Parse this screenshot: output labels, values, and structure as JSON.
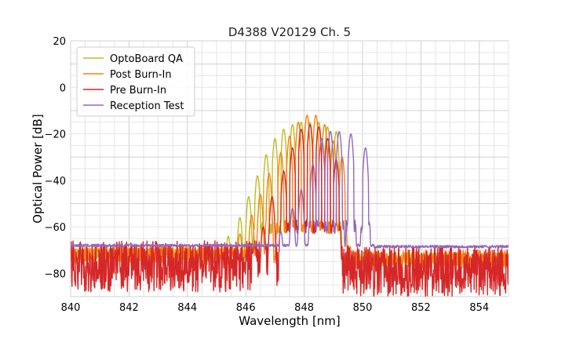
{
  "chart_data": {
    "type": "line",
    "title": "D4388 V20129 Ch. 5",
    "xlabel": "Wavelength [nm]",
    "ylabel": "Optical Power [dB]",
    "xlim": [
      840,
      855
    ],
    "ylim": [
      -90,
      20
    ],
    "xticks": [
      840,
      842,
      844,
      846,
      848,
      850,
      852,
      854
    ],
    "xtick_labels": [
      "840",
      "842",
      "844",
      "846",
      "848",
      "850",
      "852",
      "854"
    ],
    "yticks": [
      20,
      0,
      -20,
      -40,
      -60,
      -80
    ],
    "ytick_labels": [
      "20",
      "0",
      "−20",
      "−40",
      "−60",
      "−80"
    ],
    "grid": true,
    "legend_position": "top-left",
    "series": [
      {
        "name": "OptoBoard QA",
        "color": "#bcbd22",
        "noise_floor": -72,
        "noise_amp": 3,
        "noise_range": [
          840,
          845.5
        ],
        "noise_after": [
          849.3,
          855
        ],
        "floor_after": -74,
        "peaks": [
          [
            845.4,
            -64
          ],
          [
            845.8,
            -56
          ],
          [
            846.1,
            -47
          ],
          [
            846.4,
            -38
          ],
          [
            846.7,
            -29
          ],
          [
            847.0,
            -22
          ],
          [
            847.3,
            -18
          ],
          [
            847.6,
            -16
          ],
          [
            847.9,
            -15
          ],
          [
            848.2,
            -15
          ],
          [
            848.5,
            -15
          ],
          [
            848.8,
            -17
          ],
          [
            849.1,
            -19
          ]
        ],
        "envelope": [
          845.0,
          849.3
        ]
      },
      {
        "name": "Post Burn-In",
        "color": "#ff7f0e",
        "noise_floor": -72,
        "noise_amp": 4,
        "noise_range": [
          840,
          845.8
        ],
        "noise_after": [
          849.6,
          855
        ],
        "floor_after": -74,
        "peaks": [
          [
            845.8,
            -63
          ],
          [
            846.2,
            -55
          ],
          [
            846.5,
            -46
          ],
          [
            846.8,
            -37
          ],
          [
            847.2,
            -28
          ],
          [
            847.5,
            -21
          ],
          [
            847.8,
            -15
          ],
          [
            848.1,
            -12
          ],
          [
            848.4,
            -12
          ],
          [
            848.7,
            -16
          ],
          [
            849.0,
            -23
          ],
          [
            849.3,
            -30
          ]
        ],
        "envelope": [
          845.5,
          849.6
        ]
      },
      {
        "name": "Pre Burn-In",
        "color": "#d62728",
        "noise_floor": -80,
        "noise_amp": 10,
        "noise_range": [
          840,
          846.5
        ],
        "noise_after": [
          849.2,
          855
        ],
        "floor_after": -82,
        "peaks": [
          [
            846.3,
            -68
          ],
          [
            846.6,
            -60
          ],
          [
            846.9,
            -47
          ],
          [
            847.3,
            -36
          ],
          [
            847.6,
            -26
          ],
          [
            847.9,
            -18
          ],
          [
            848.2,
            -16
          ],
          [
            848.5,
            -17
          ],
          [
            848.8,
            -22
          ],
          [
            849.1,
            -31
          ]
        ],
        "envelope": [
          846.1,
          849.3
        ]
      },
      {
        "name": "Reception Test",
        "color": "#9467bd",
        "noise_floor": -68,
        "noise_amp": 0.6,
        "noise_range": [
          840,
          846.8
        ],
        "noise_after": [
          850.4,
          855
        ],
        "floor_after": -68.5,
        "peaks": [
          [
            847.2,
            -62
          ],
          [
            847.6,
            -52
          ],
          [
            847.9,
            -44
          ],
          [
            848.3,
            -33
          ],
          [
            848.6,
            -22
          ],
          [
            848.9,
            -19
          ],
          [
            849.2,
            -19
          ],
          [
            849.6,
            -20
          ],
          [
            850.1,
            -26
          ]
        ],
        "envelope": [
          846.8,
          850.4
        ]
      }
    ]
  }
}
